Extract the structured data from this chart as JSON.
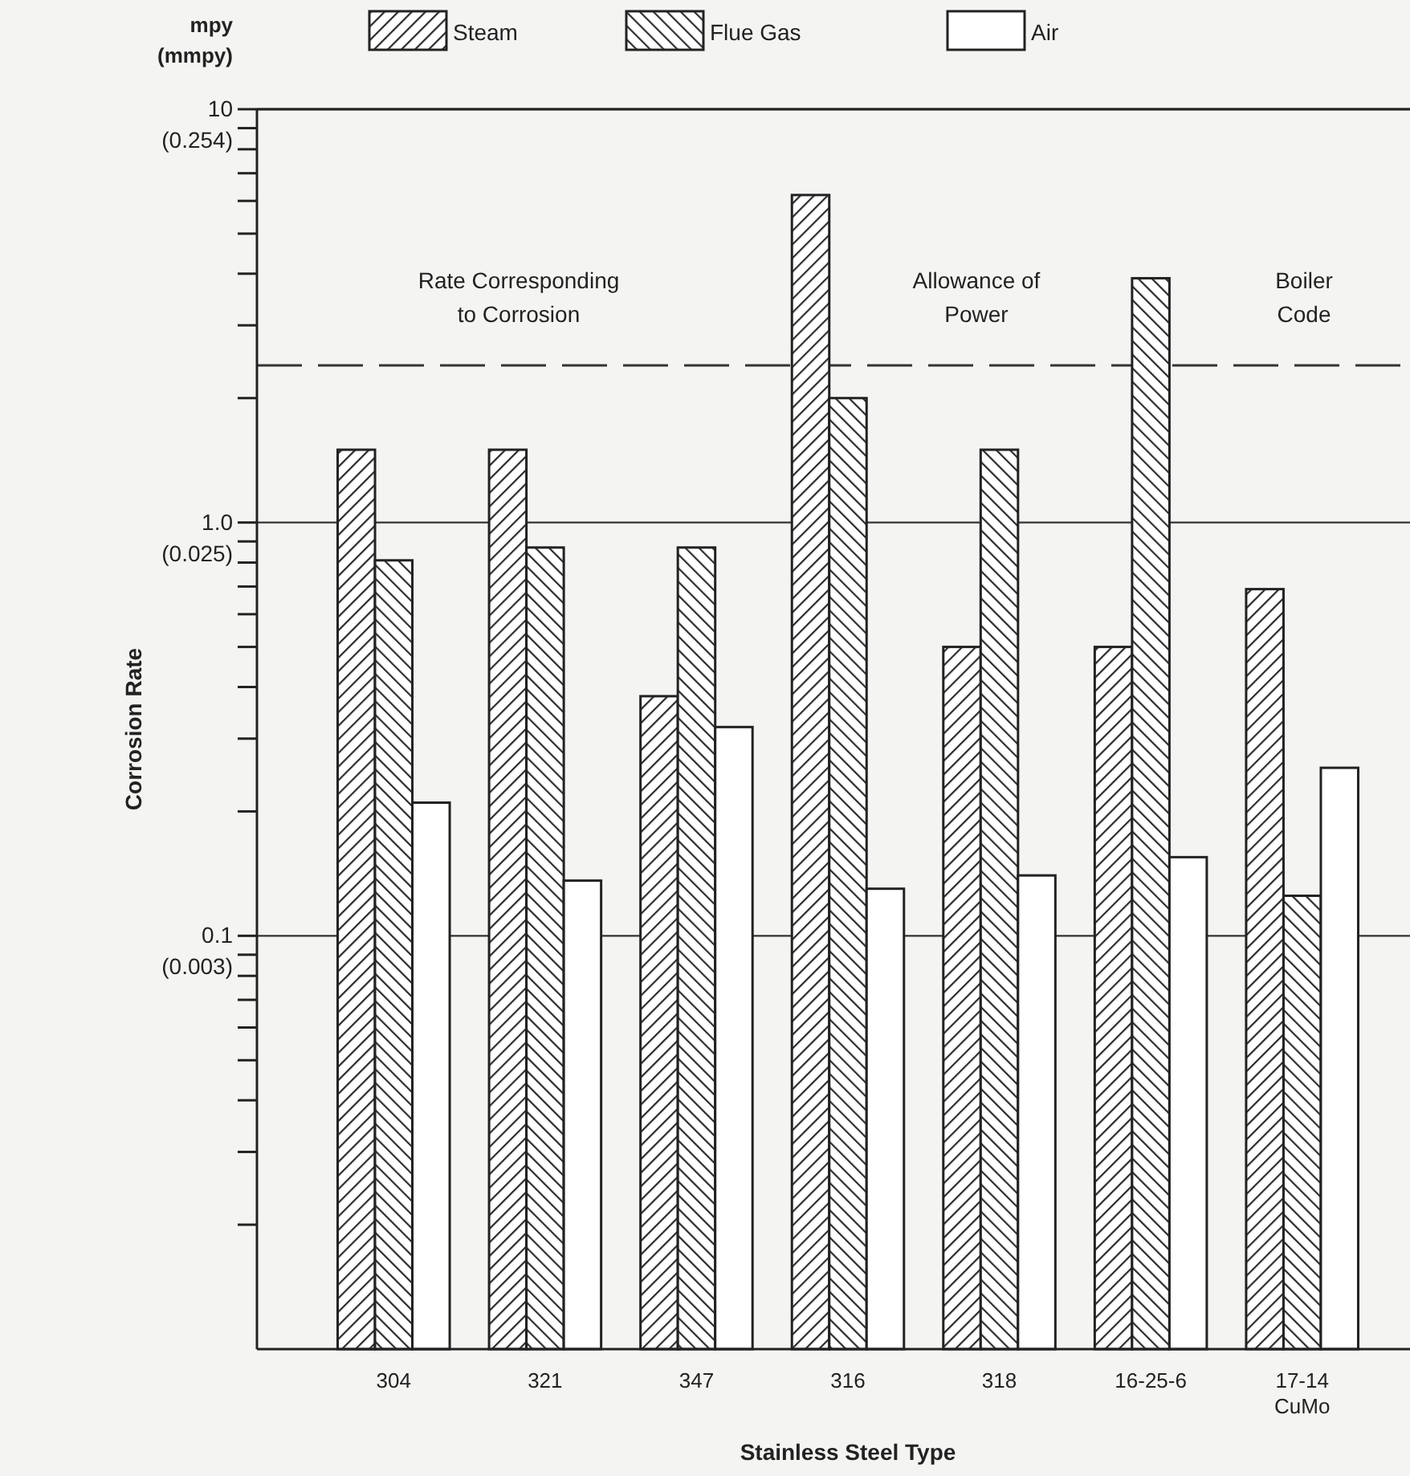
{
  "chart_data": {
    "type": "bar",
    "xlabel": "Stainless Steel Type",
    "ylabel": "Corrosion Rate",
    "categories": [
      "304",
      "321",
      "347",
      "316",
      "318",
      "16-25-6",
      "17-14\nCuMo"
    ],
    "series": [
      {
        "name": "Steam",
        "color": "#2a2a2a",
        "values": [
          1.5,
          1.5,
          0.38,
          6.2,
          0.5,
          0.5,
          0.69
        ]
      },
      {
        "name": "Flue Gas",
        "color": "#2b2b2b",
        "values": [
          0.81,
          0.87,
          0.87,
          2.0,
          1.5,
          3.9,
          0.125
        ]
      },
      {
        "name": "Air",
        "color": "#ffffff",
        "values": [
          0.21,
          0.136,
          0.32,
          0.13,
          0.14,
          0.155,
          0.255
        ]
      }
    ],
    "log": "y",
    "ylim": [
      0.01,
      10
    ],
    "yticks": [
      {
        "value": 0.02,
        "label": null
      },
      {
        "value": 0.03,
        "label": null
      },
      {
        "value": 0.04,
        "label": null
      },
      {
        "value": 0.05,
        "label": null
      },
      {
        "value": 0.06,
        "label": null
      },
      {
        "value": 0.07,
        "label": null
      },
      {
        "value": 0.08,
        "label": null
      },
      {
        "value": 0.09,
        "label": null
      },
      0.1,
      {
        "value": 0.2,
        "label": null
      },
      {
        "value": 0.3,
        "label": null
      },
      {
        "value": 0.4,
        "label": null
      },
      {
        "value": 0.5,
        "label": null
      },
      {
        "value": 0.6,
        "label": null
      },
      {
        "value": 0.7,
        "label": null
      },
      {
        "value": 0.8,
        "label": null
      },
      {
        "value": 0.9,
        "label": null
      },
      {
        "value": 1,
        "label": "1.0"
      },
      {
        "value": 2,
        "label": null
      },
      {
        "value": 3,
        "label": null
      },
      {
        "value": 4,
        "label": null
      },
      {
        "value": 5,
        "label": null
      },
      {
        "value": 6,
        "label": null
      },
      {
        "value": 7,
        "label": null
      },
      {
        "value": 8,
        "label": null
      },
      {
        "value": 9,
        "label": null
      },
      10
    ],
    "grid": "y",
    "legend": "top",
    "ref_lines": [
      {
        "axis": "y",
        "value": 2.4,
        "line_style": "dashed"
      }
    ],
    "annotations": [
      "mpy\n(mmpy)",
      "(0.254)",
      "(0.025)",
      "(0.003)",
      "Rate Corresponding\nto Corrosion",
      "Allowance of\nPower",
      "Boiler\nCode"
    ]
  }
}
